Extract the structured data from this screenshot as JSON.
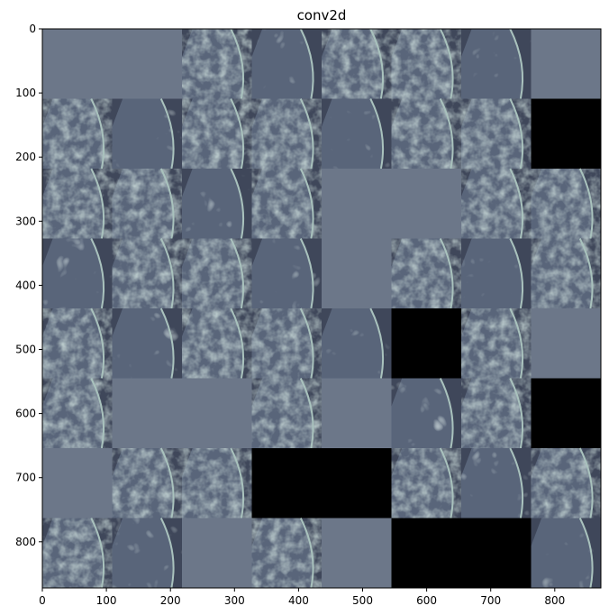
{
  "title": "conv2d",
  "chart_data": {
    "type": "heatmap",
    "title": "conv2d",
    "grid_rows": 8,
    "grid_cols": 8,
    "xlim": [
      0,
      872
    ],
    "ylim": [
      872,
      0
    ],
    "x_ticks": [
      0,
      100,
      200,
      300,
      400,
      500,
      600,
      700,
      800
    ],
    "y_ticks": [
      0,
      100,
      200,
      300,
      400,
      500,
      600,
      700,
      800
    ],
    "colormap": "bone",
    "colors": {
      "black": "#000000",
      "flat": "#6c7789",
      "dark": "#3f475a",
      "light": "#a9c2bd"
    },
    "tiles": [
      "flat",
      "flat",
      "texture",
      "texture",
      "texture",
      "texture",
      "texture",
      "flat",
      "texture",
      "texture",
      "texture",
      "texture",
      "texture",
      "texture",
      "texture",
      "black",
      "texture",
      "texture",
      "texture",
      "texture",
      "flat",
      "flat",
      "texture",
      "texture",
      "texture",
      "texture",
      "texture",
      "texture",
      "flat",
      "texture",
      "texture",
      "texture",
      "texture",
      "texture",
      "texture",
      "texture",
      "texture",
      "black",
      "texture",
      "flat",
      "texture",
      "flat",
      "flat",
      "texture",
      "flat",
      "texture",
      "texture",
      "black",
      "flat",
      "texture",
      "texture",
      "black",
      "black",
      "texture",
      "texture",
      "texture",
      "texture",
      "texture",
      "flat",
      "texture",
      "flat",
      "black",
      "black",
      "texture"
    ]
  }
}
